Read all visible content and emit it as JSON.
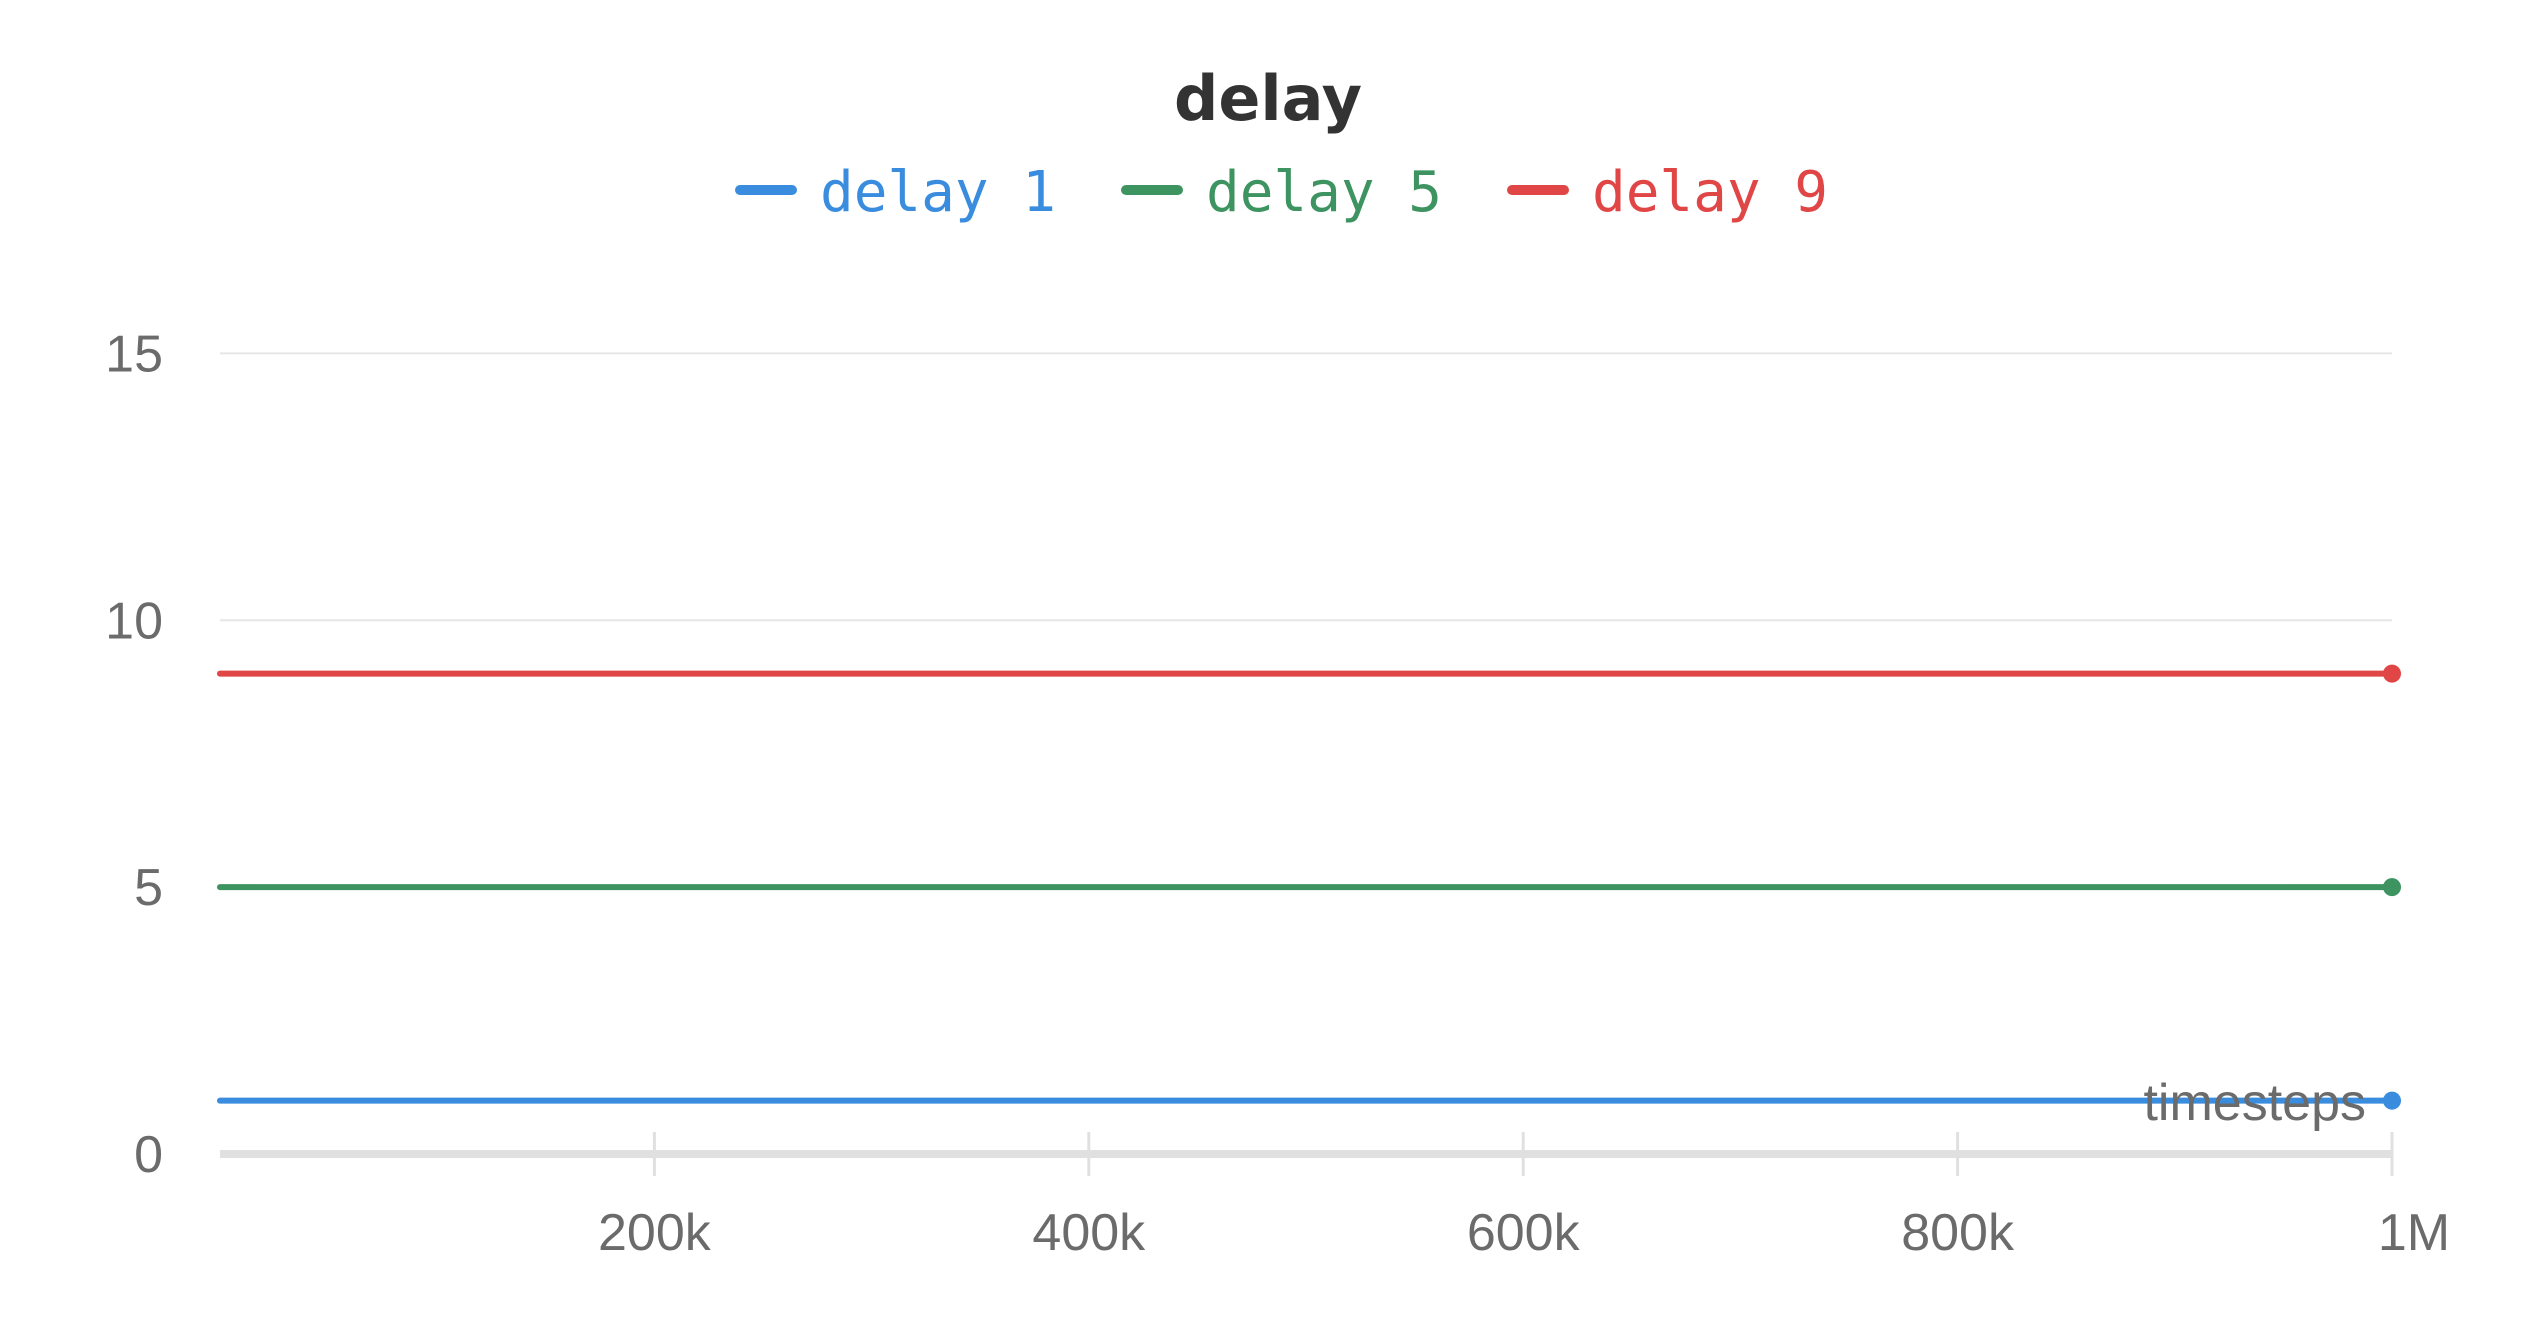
{
  "chart_data": {
    "type": "line",
    "title": "delay",
    "xlabel": "timesteps",
    "ylabel": "",
    "xlim": [
      0,
      1000000
    ],
    "ylim": [
      0,
      16
    ],
    "x_ticks": [
      {
        "value": 200000,
        "label": "200k"
      },
      {
        "value": 400000,
        "label": "400k"
      },
      {
        "value": 600000,
        "label": "600k"
      },
      {
        "value": 800000,
        "label": "800k"
      },
      {
        "value": 1000000,
        "label": "1M"
      }
    ],
    "y_ticks": [
      {
        "value": 0,
        "label": "0"
      },
      {
        "value": 5,
        "label": "5"
      },
      {
        "value": 10,
        "label": "10"
      },
      {
        "value": 15,
        "label": "15"
      }
    ],
    "grid": "horizontal",
    "legend_position": "top-center",
    "series": [
      {
        "name": "delay 1",
        "color": "#3a8dde",
        "x": [
          0,
          1000000
        ],
        "y": [
          1,
          1
        ]
      },
      {
        "name": "delay 5",
        "color": "#3d9460",
        "x": [
          0,
          1000000
        ],
        "y": [
          5,
          5
        ]
      },
      {
        "name": "delay 9",
        "color": "#e04646",
        "x": [
          0,
          1000000
        ],
        "y": [
          9,
          9
        ]
      }
    ]
  }
}
